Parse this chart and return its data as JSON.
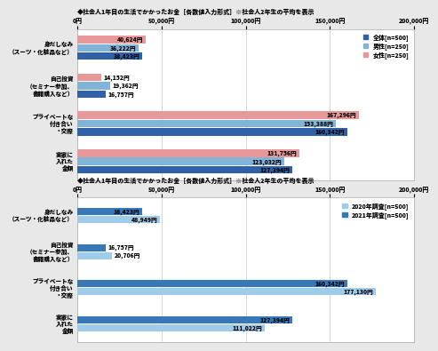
{
  "chart1": {
    "title": "◆社会人1年目の生活でかかったお金［各数値入力形式］※社会人2年生の平均を表示",
    "categories": [
      "身だしなみ\n（スーツ・化粧品など）",
      "自己投資\n（セミナー参加、\n書籍購入など）",
      "プライベートな\n付き合い\n・交際",
      "実家に\n入れた\n金額"
    ],
    "series": [
      {
        "label": "全体[n=500]",
        "color": "#3060a8",
        "values": [
          38423,
          16757,
          160342,
          127394
        ]
      },
      {
        "label": "男性[n=250]",
        "color": "#82b4d8",
        "values": [
          36222,
          19362,
          153388,
          123032
        ]
      },
      {
        "label": "女性[n=250]",
        "color": "#e89898",
        "values": [
          40624,
          14152,
          167296,
          131756
        ]
      }
    ],
    "xlim": [
      0,
      200000
    ],
    "xticks": [
      0,
      50000,
      100000,
      150000,
      200000
    ],
    "xtick_labels": [
      "0円",
      "50,000円",
      "100,000円",
      "150,000円",
      "200,000円"
    ]
  },
  "chart2": {
    "title": "◆社会人1年目の生活でかかったお金［各数値入力形式］※社会人2年生の平均を表示",
    "categories": [
      "身だしなみ\n（スーツ・化粧品など）",
      "自己投資\n（セミナー参加、\n書籍購入など）",
      "プライベートな\n付き合い\n・交際",
      "実家に\n入れた\n金額"
    ],
    "series": [
      {
        "label": "2020年調査[n=500]",
        "color": "#a0cceb",
        "values": [
          48949,
          20706,
          177130,
          111022
        ]
      },
      {
        "label": "2021年調査[n=500]",
        "color": "#3878b8",
        "values": [
          38423,
          16757,
          160342,
          127394
        ]
      }
    ],
    "xlim": [
      0,
      200000
    ],
    "xticks": [
      0,
      50000,
      100000,
      150000,
      200000
    ],
    "xtick_labels": [
      "0円",
      "50,000円",
      "100,000円",
      "150,000円",
      "200,000円"
    ]
  },
  "bg_color": "#e8e8e8",
  "plot_bg_color": "#ffffff",
  "border_color": "#aaaaaa"
}
